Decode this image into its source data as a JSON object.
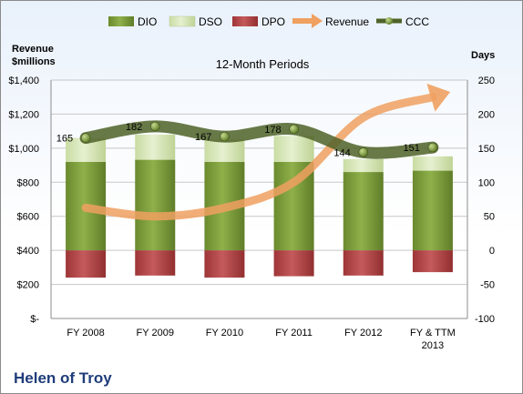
{
  "chart_data": {
    "type": "bar",
    "title": "12-Month Periods",
    "company": "Helen of Troy",
    "y_left_label": "Revenue\n$millions",
    "y_right_label": "Days",
    "categories": [
      "FY 2008",
      "FY 2009",
      "FY 2010",
      "FY 2011",
      "FY 2012",
      "FY & TTM\n2013"
    ],
    "y_left_ticks": [
      "$-",
      "$200",
      "$400",
      "$600",
      "$800",
      "$1,000",
      "$1,200",
      "$1,400"
    ],
    "y_right_ticks": [
      "-100",
      "-50",
      "0",
      "50",
      "100",
      "150",
      "200",
      "250"
    ],
    "ylim_left": [
      0,
      1400
    ],
    "ylim_right": [
      -100,
      250
    ],
    "legend_position": "top",
    "legend": [
      "DIO",
      "DSO",
      "DPO",
      "Revenue",
      "CCC"
    ],
    "colors": {
      "DIO": "#77933c",
      "DSO": "#d7e4bd",
      "DPO": "#b84a4b",
      "Revenue": "#f0a060",
      "CCC": "#4f6228"
    },
    "series": [
      {
        "name": "DIO",
        "axis": "right",
        "values": [
          130,
          133,
          130,
          130,
          115,
          117
        ]
      },
      {
        "name": "DSO",
        "axis": "right",
        "values": [
          35,
          37,
          33,
          38,
          19,
          21
        ]
      },
      {
        "name": "DPO",
        "axis": "right",
        "values": [
          -40,
          -37,
          -40,
          -38,
          -37,
          -32
        ]
      },
      {
        "name": "Revenue",
        "axis": "left",
        "values": [
          650,
          600,
          650,
          800,
          1180,
          1300
        ]
      },
      {
        "name": "CCC",
        "axis": "right",
        "values": [
          165,
          182,
          167,
          178,
          144,
          151
        ]
      }
    ],
    "data_labels": [
      "165",
      "182",
      "167",
      "178",
      "144",
      "151"
    ]
  }
}
